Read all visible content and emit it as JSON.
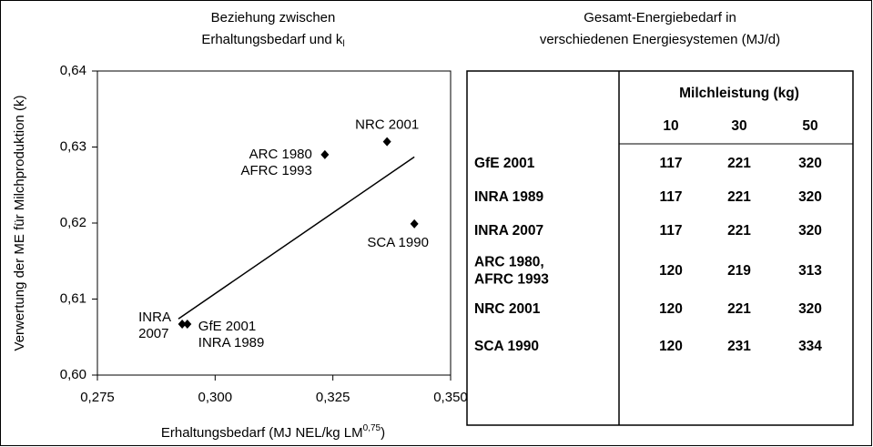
{
  "chart_data": {
    "type": "scatter",
    "title": [
      "Beziehung zwischen",
      "Erhaltungsbedarf und k"
    ],
    "title_subscript": "l",
    "x_label": "Erhaltungsbedarf (MJ NEL/kg LM",
    "x_label_superscript": "0,75",
    "x_label_end": ")",
    "y_label": "Verwertung der ME für Milchproduktion (k)",
    "xlim": [
      0.275,
      0.35
    ],
    "ylim": [
      0.6,
      0.64
    ],
    "xticks": [
      {
        "value": 0.275,
        "label": "0,275"
      },
      {
        "value": 0.3,
        "label": "0,300"
      },
      {
        "value": 0.325,
        "label": "0,325"
      },
      {
        "value": 0.35,
        "label": "0,350"
      }
    ],
    "yticks": [
      {
        "value": 0.6,
        "label": "0,60"
      },
      {
        "value": 0.61,
        "label": "0,61"
      },
      {
        "value": 0.62,
        "label": "0,62"
      },
      {
        "value": 0.63,
        "label": "0,63"
      },
      {
        "value": 0.64,
        "label": "0,64"
      }
    ],
    "series": [
      {
        "color": "#000000",
        "x": [
          0.3233,
          0.3365,
          0.3423,
          0.293,
          0.2941
        ],
        "y": [
          0.629,
          0.6307,
          0.6199,
          0.6067,
          0.6067
        ],
        "labels": [
          [
            "ARC 1980",
            "AFRC 1993"
          ],
          [
            "NRC 2001"
          ],
          [
            "SCA 1990"
          ],
          [
            "INRA",
            "2007"
          ],
          [
            "GfE 2001",
            "INRA 1989"
          ]
        ]
      }
    ],
    "trendline": {
      "x": [
        0.2922,
        0.3423
      ],
      "y": [
        0.6074,
        0.6287
      ]
    }
  },
  "table": {
    "title": [
      "Gesamt-Energiebedarf in",
      "verschiedenen Energiesystemen (MJ/d)"
    ],
    "group_header": "Milchleistung (kg)",
    "columns": [
      "10",
      "30",
      "50"
    ],
    "rows": [
      {
        "label": [
          "GfE 2001"
        ],
        "cells": [
          "117",
          "221",
          "320"
        ]
      },
      {
        "label": [
          "INRA 1989"
        ],
        "cells": [
          "117",
          "221",
          "320"
        ]
      },
      {
        "label": [
          "INRA 2007"
        ],
        "cells": [
          "117",
          "221",
          "320"
        ]
      },
      {
        "label": [
          "ARC 1980,",
          "AFRC 1993"
        ],
        "cells": [
          "120",
          "219",
          "313"
        ]
      },
      {
        "label": [
          "NRC 2001"
        ],
        "cells": [
          "120",
          "221",
          "320"
        ]
      },
      {
        "label": [
          "SCA 1990"
        ],
        "cells": [
          "120",
          "231",
          "334"
        ]
      }
    ]
  }
}
